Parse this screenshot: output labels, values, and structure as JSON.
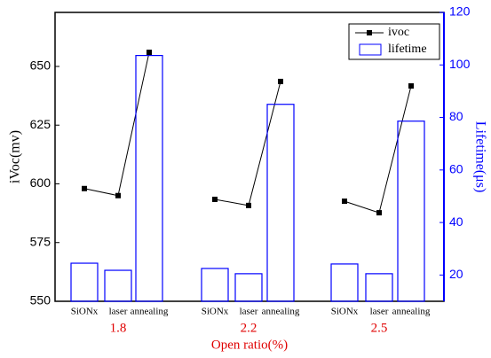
{
  "chart_data": {
    "type": "bar-line",
    "x_label": "Open ratio(%)",
    "y_label": "iVoc(mv)",
    "y2_label": "Lifetime(μs)",
    "categories": [
      "SiONx",
      "laser",
      "annealing",
      "SiONx",
      "laser",
      "annealing",
      "SiONx",
      "laser",
      "annealing"
    ],
    "groups": [
      "1.8",
      "2.2",
      "2.5"
    ],
    "series": [
      {
        "name": "ivoc",
        "color": "#000000",
        "values": [
          598,
          595,
          656,
          593.4,
          590.8,
          643.6,
          592.6,
          587.7,
          641.7
        ]
      },
      {
        "name": "lifetime",
        "color": "#0000ff",
        "axis": "y2",
        "values": [
          24.5,
          21.8,
          103.6,
          22.5,
          20.5,
          85,
          24.2,
          20.5,
          78.6
        ]
      }
    ],
    "ylim": [
      550,
      673
    ],
    "yticks": [
      550,
      575,
      600,
      625,
      650
    ],
    "y2lim": [
      10,
      120
    ],
    "y2ticks": [
      20,
      40,
      60,
      80,
      100,
      120
    ]
  }
}
